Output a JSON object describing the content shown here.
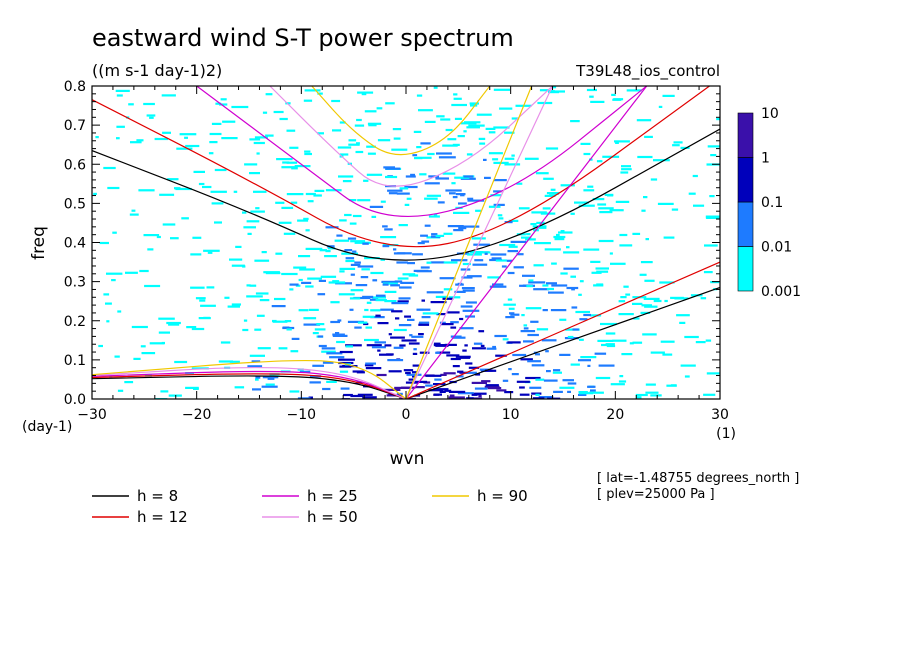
{
  "title": "eastward wind S-T power spectrum",
  "subtitle": "((m s-1 day-1)2)",
  "run_label": "T39L48_ios_control",
  "info_lines": [
    "[ lat=-1.48755 degrees_north ]",
    "[ plev=25000 Pa ]"
  ],
  "colors": {
    "h8": "#000000",
    "h12": "#e00000",
    "h25": "#d000d0",
    "h50": "#e890e8",
    "h90": "#f0c800",
    "level_001": "#00ffff",
    "level_01": "#1e7bff",
    "level_1": "#0000bb",
    "level_10": "#3a10aa"
  },
  "chart_data": {
    "type": "heatmap",
    "title": "eastward wind S-T power spectrum",
    "subtitle": "((m s-1 day-1)2)",
    "xlabel": "wvn",
    "ylabel": "freq",
    "x_unit": "(1)",
    "y_unit": "(day-1)",
    "xlim": [
      -30,
      30
    ],
    "ylim": [
      0,
      0.8
    ],
    "xticks": [
      -30,
      -20,
      -10,
      0,
      10,
      20,
      30
    ],
    "yticks": [
      0.0,
      0.1,
      0.2,
      0.3,
      0.4,
      0.5,
      0.6,
      0.7,
      0.8
    ],
    "ytick_labels": [
      "0.0",
      "0.1",
      "0.2",
      "0.3",
      "0.4",
      "0.5",
      "0.6",
      "0.7",
      "0.8"
    ],
    "colorbar": {
      "levels": [
        0.001,
        0.01,
        0.1,
        1,
        10
      ],
      "labels": [
        "0.001",
        "0.01",
        "0.1",
        "1",
        "10"
      ],
      "colors": [
        "#00ffff",
        "#1e7bff",
        "#0000bb",
        "#3a10aa"
      ]
    },
    "series": [
      {
        "name": "h =  8",
        "color": "#000000"
      },
      {
        "name": "h = 12",
        "color": "#e00000"
      },
      {
        "name": "h = 25",
        "color": "#d000d0"
      },
      {
        "name": "h = 50",
        "color": "#e890e8"
      },
      {
        "name": "h = 90",
        "color": "#f0c800"
      }
    ],
    "dispersion_curves": [
      {
        "h": 8,
        "kelvin": [
          [
            0,
            0
          ],
          [
            30,
            0.285
          ]
        ],
        "ig1": [
          [
            -30,
            0.635
          ],
          [
            -15,
            0.48
          ],
          [
            -3,
            0.335
          ],
          [
            10,
            0.39
          ],
          [
            30,
            0.69
          ]
        ],
        "rossby": [
          [
            -30,
            0.052
          ],
          [
            -12,
            0.062
          ],
          [
            -5,
            0.045
          ],
          [
            0,
            0
          ]
        ]
      },
      {
        "h": 12,
        "kelvin": [
          [
            0,
            0
          ],
          [
            30,
            0.35
          ]
        ],
        "ig1": [
          [
            -30,
            0.765
          ],
          [
            -15,
            0.56
          ],
          [
            -2,
            0.365
          ],
          [
            10,
            0.43
          ],
          [
            29,
            0.8
          ]
        ],
        "rossby": [
          [
            -30,
            0.055
          ],
          [
            -12,
            0.068
          ],
          [
            -5,
            0.05
          ],
          [
            0,
            0
          ]
        ]
      },
      {
        "h": 25,
        "kelvin": [
          [
            0,
            0
          ],
          [
            23,
            0.8
          ]
        ],
        "ig1": [
          [
            -20,
            0.8
          ],
          [
            -10,
            0.6
          ],
          [
            -2,
            0.44
          ],
          [
            10,
            0.52
          ],
          [
            23,
            0.8
          ]
        ],
        "rossby": [
          [
            -30,
            0.058
          ],
          [
            -12,
            0.075
          ],
          [
            -5,
            0.055
          ],
          [
            0,
            0
          ]
        ]
      },
      {
        "h": 50,
        "kelvin": [
          [
            0,
            0
          ],
          [
            14,
            0.8
          ]
        ],
        "ig1": [
          [
            -13,
            0.8
          ],
          [
            -7,
            0.64
          ],
          [
            -2,
            0.52
          ],
          [
            6,
            0.6
          ],
          [
            14,
            0.8
          ]
        ],
        "rossby": [
          [
            -30,
            0.06
          ],
          [
            -15,
            0.085
          ],
          [
            -6,
            0.07
          ],
          [
            0,
            0
          ]
        ]
      },
      {
        "h": 90,
        "kelvin": [
          [
            0,
            0
          ],
          [
            12,
            0.8
          ]
        ],
        "ig1": [
          [
            -9,
            0.8
          ],
          [
            -5,
            0.68
          ],
          [
            -1,
            0.61
          ],
          [
            4,
            0.66
          ],
          [
            8,
            0.8
          ]
        ],
        "rossby": [
          [
            -30,
            0.062
          ],
          [
            -10,
            0.105
          ],
          [
            -4,
            0.085
          ],
          [
            0,
            0
          ]
        ]
      }
    ]
  }
}
